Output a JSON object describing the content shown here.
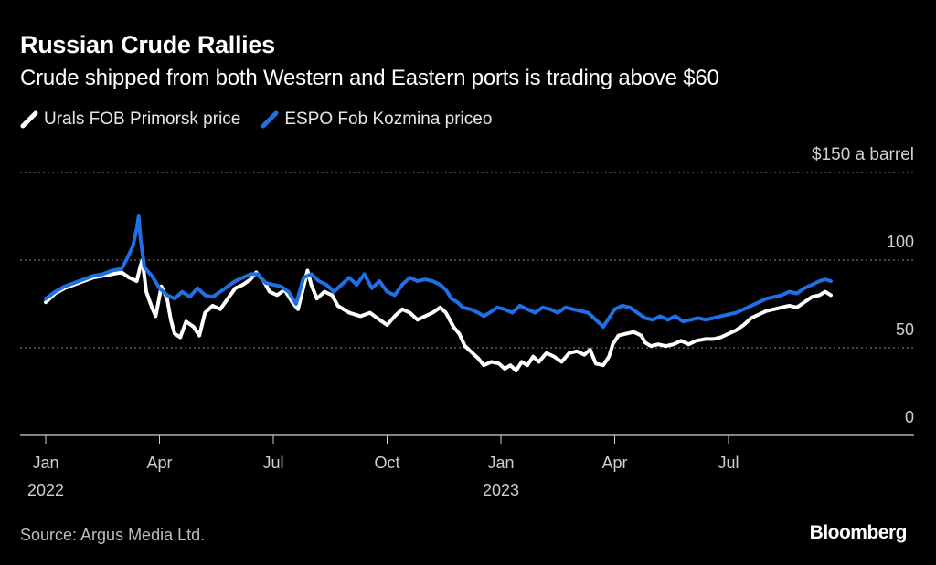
{
  "chart_data": {
    "type": "line",
    "title": "Russian Crude Rallies",
    "subtitle": "Crude shipped from both Western and Eastern ports is trading above $60",
    "ylabel": "$150 a barrel",
    "ylim": [
      0,
      150
    ],
    "yticks": [
      {
        "value": 150,
        "label": "$150"
      },
      {
        "value": 100,
        "label": "100"
      },
      {
        "value": 50,
        "label": "50"
      },
      {
        "value": 0,
        "label": "0"
      }
    ],
    "xlim": [
      0,
      22.8
    ],
    "xticks": [
      {
        "month": 0,
        "line1": "Jan",
        "line2": "2022"
      },
      {
        "month": 3,
        "line1": "Apr",
        "line2": ""
      },
      {
        "month": 6,
        "line1": "Jul",
        "line2": ""
      },
      {
        "month": 9,
        "line1": "Oct",
        "line2": ""
      },
      {
        "month": 12,
        "line1": "Jan",
        "line2": "2023"
      },
      {
        "month": 15,
        "line1": "Apr",
        "line2": ""
      },
      {
        "month": 18,
        "line1": "Jul",
        "line2": ""
      }
    ],
    "x_unit": "months since Jan 2022",
    "series": [
      {
        "name": "Urals FOB Primorsk price",
        "color": "#ffffff",
        "points": [
          [
            0.0,
            76
          ],
          [
            0.25,
            81
          ],
          [
            0.5,
            84
          ],
          [
            0.75,
            86
          ],
          [
            1.0,
            88
          ],
          [
            1.25,
            90
          ],
          [
            1.5,
            91
          ],
          [
            1.75,
            92
          ],
          [
            2.0,
            93
          ],
          [
            2.2,
            90
          ],
          [
            2.4,
            88
          ],
          [
            2.5,
            97
          ],
          [
            2.55,
            100
          ],
          [
            2.65,
            82
          ],
          [
            2.8,
            73
          ],
          [
            2.9,
            68
          ],
          [
            3.05,
            85
          ],
          [
            3.2,
            78
          ],
          [
            3.3,
            66
          ],
          [
            3.4,
            58
          ],
          [
            3.55,
            56
          ],
          [
            3.7,
            65
          ],
          [
            3.9,
            62
          ],
          [
            4.05,
            57
          ],
          [
            4.2,
            70
          ],
          [
            4.4,
            74
          ],
          [
            4.6,
            72
          ],
          [
            4.8,
            78
          ],
          [
            5.0,
            84
          ],
          [
            5.2,
            86
          ],
          [
            5.4,
            89
          ],
          [
            5.55,
            93
          ],
          [
            5.75,
            88
          ],
          [
            5.9,
            82
          ],
          [
            6.1,
            80
          ],
          [
            6.3,
            83
          ],
          [
            6.5,
            76
          ],
          [
            6.65,
            72
          ],
          [
            6.8,
            85
          ],
          [
            6.9,
            94
          ],
          [
            7.0,
            86
          ],
          [
            7.15,
            78
          ],
          [
            7.35,
            82
          ],
          [
            7.55,
            80
          ],
          [
            7.7,
            74
          ],
          [
            7.85,
            72
          ],
          [
            8.0,
            70
          ],
          [
            8.3,
            68
          ],
          [
            8.55,
            70
          ],
          [
            8.8,
            66
          ],
          [
            9.0,
            63
          ],
          [
            9.2,
            68
          ],
          [
            9.4,
            72
          ],
          [
            9.6,
            70
          ],
          [
            9.8,
            66
          ],
          [
            10.0,
            68
          ],
          [
            10.2,
            70
          ],
          [
            10.4,
            73
          ],
          [
            10.55,
            70
          ],
          [
            10.75,
            62
          ],
          [
            10.9,
            58
          ],
          [
            11.05,
            51
          ],
          [
            11.2,
            48
          ],
          [
            11.4,
            44
          ],
          [
            11.55,
            40
          ],
          [
            11.75,
            42
          ],
          [
            11.95,
            41
          ],
          [
            12.1,
            38
          ],
          [
            12.25,
            40
          ],
          [
            12.4,
            37
          ],
          [
            12.55,
            42
          ],
          [
            12.7,
            40
          ],
          [
            12.85,
            45
          ],
          [
            13.0,
            42
          ],
          [
            13.2,
            47
          ],
          [
            13.4,
            45
          ],
          [
            13.6,
            42
          ],
          [
            13.8,
            47
          ],
          [
            14.0,
            48
          ],
          [
            14.2,
            46
          ],
          [
            14.35,
            49
          ],
          [
            14.5,
            41
          ],
          [
            14.7,
            40
          ],
          [
            14.85,
            45
          ],
          [
            14.95,
            52
          ],
          [
            15.1,
            57
          ],
          [
            15.3,
            58
          ],
          [
            15.5,
            59
          ],
          [
            15.7,
            57
          ],
          [
            15.8,
            53
          ],
          [
            15.95,
            51
          ],
          [
            16.15,
            52
          ],
          [
            16.35,
            51
          ],
          [
            16.55,
            52
          ],
          [
            16.75,
            54
          ],
          [
            16.95,
            52
          ],
          [
            17.15,
            54
          ],
          [
            17.4,
            55
          ],
          [
            17.6,
            55
          ],
          [
            17.8,
            56
          ],
          [
            18.0,
            58
          ],
          [
            18.2,
            60
          ],
          [
            18.4,
            63
          ],
          [
            18.6,
            67
          ],
          [
            18.8,
            69
          ],
          [
            19.0,
            71
          ],
          [
            19.2,
            72
          ],
          [
            19.4,
            73
          ],
          [
            19.6,
            74
          ],
          [
            19.8,
            73
          ],
          [
            20.0,
            76
          ],
          [
            20.2,
            79
          ],
          [
            20.4,
            80
          ],
          [
            20.55,
            82
          ],
          [
            20.7,
            80
          ]
        ]
      },
      {
        "name": "ESPO Fob Kozmina priceo",
        "color": "#1f6fe5",
        "points": [
          [
            0.0,
            78
          ],
          [
            0.25,
            82
          ],
          [
            0.5,
            85
          ],
          [
            0.75,
            87
          ],
          [
            1.0,
            89
          ],
          [
            1.25,
            91
          ],
          [
            1.5,
            92
          ],
          [
            1.75,
            94
          ],
          [
            2.0,
            95
          ],
          [
            2.15,
            101
          ],
          [
            2.3,
            108
          ],
          [
            2.4,
            118
          ],
          [
            2.45,
            125
          ],
          [
            2.5,
            112
          ],
          [
            2.6,
            96
          ],
          [
            2.8,
            91
          ],
          [
            3.0,
            84
          ],
          [
            3.2,
            80
          ],
          [
            3.4,
            78
          ],
          [
            3.6,
            82
          ],
          [
            3.8,
            79
          ],
          [
            4.0,
            84
          ],
          [
            4.2,
            80
          ],
          [
            4.4,
            79
          ],
          [
            4.6,
            82
          ],
          [
            4.8,
            85
          ],
          [
            5.0,
            88
          ],
          [
            5.2,
            90
          ],
          [
            5.4,
            92
          ],
          [
            5.6,
            92
          ],
          [
            5.8,
            87
          ],
          [
            6.0,
            86
          ],
          [
            6.2,
            85
          ],
          [
            6.4,
            82
          ],
          [
            6.6,
            75
          ],
          [
            6.8,
            90
          ],
          [
            7.0,
            92
          ],
          [
            7.2,
            88
          ],
          [
            7.4,
            86
          ],
          [
            7.6,
            82
          ],
          [
            7.8,
            86
          ],
          [
            8.0,
            90
          ],
          [
            8.2,
            86
          ],
          [
            8.4,
            92
          ],
          [
            8.6,
            84
          ],
          [
            8.8,
            88
          ],
          [
            9.0,
            82
          ],
          [
            9.2,
            80
          ],
          [
            9.4,
            86
          ],
          [
            9.6,
            90
          ],
          [
            9.8,
            88
          ],
          [
            10.0,
            89
          ],
          [
            10.2,
            88
          ],
          [
            10.4,
            86
          ],
          [
            10.55,
            83
          ],
          [
            10.7,
            78
          ],
          [
            10.85,
            76
          ],
          [
            11.0,
            73
          ],
          [
            11.2,
            72
          ],
          [
            11.4,
            70
          ],
          [
            11.55,
            68
          ],
          [
            11.7,
            70
          ],
          [
            11.9,
            73
          ],
          [
            12.1,
            72
          ],
          [
            12.3,
            70
          ],
          [
            12.5,
            74
          ],
          [
            12.7,
            72
          ],
          [
            12.9,
            70
          ],
          [
            13.1,
            73
          ],
          [
            13.3,
            72
          ],
          [
            13.5,
            70
          ],
          [
            13.7,
            73
          ],
          [
            13.9,
            72
          ],
          [
            14.1,
            71
          ],
          [
            14.3,
            70
          ],
          [
            14.5,
            66
          ],
          [
            14.7,
            62
          ],
          [
            14.85,
            67
          ],
          [
            15.0,
            72
          ],
          [
            15.2,
            74
          ],
          [
            15.4,
            73
          ],
          [
            15.6,
            70
          ],
          [
            15.8,
            67
          ],
          [
            16.0,
            66
          ],
          [
            16.2,
            68
          ],
          [
            16.4,
            66
          ],
          [
            16.6,
            68
          ],
          [
            16.8,
            65
          ],
          [
            17.0,
            66
          ],
          [
            17.2,
            67
          ],
          [
            17.4,
            66
          ],
          [
            17.6,
            67
          ],
          [
            17.8,
            68
          ],
          [
            18.0,
            69
          ],
          [
            18.2,
            70
          ],
          [
            18.4,
            72
          ],
          [
            18.6,
            74
          ],
          [
            18.8,
            76
          ],
          [
            19.0,
            78
          ],
          [
            19.2,
            79
          ],
          [
            19.4,
            80
          ],
          [
            19.6,
            82
          ],
          [
            19.8,
            81
          ],
          [
            20.0,
            84
          ],
          [
            20.2,
            86
          ],
          [
            20.4,
            88
          ],
          [
            20.55,
            89
          ],
          [
            20.7,
            88
          ]
        ]
      }
    ]
  },
  "footer": {
    "source": "Source: Argus Media Ltd.",
    "brand": "Bloomberg"
  }
}
